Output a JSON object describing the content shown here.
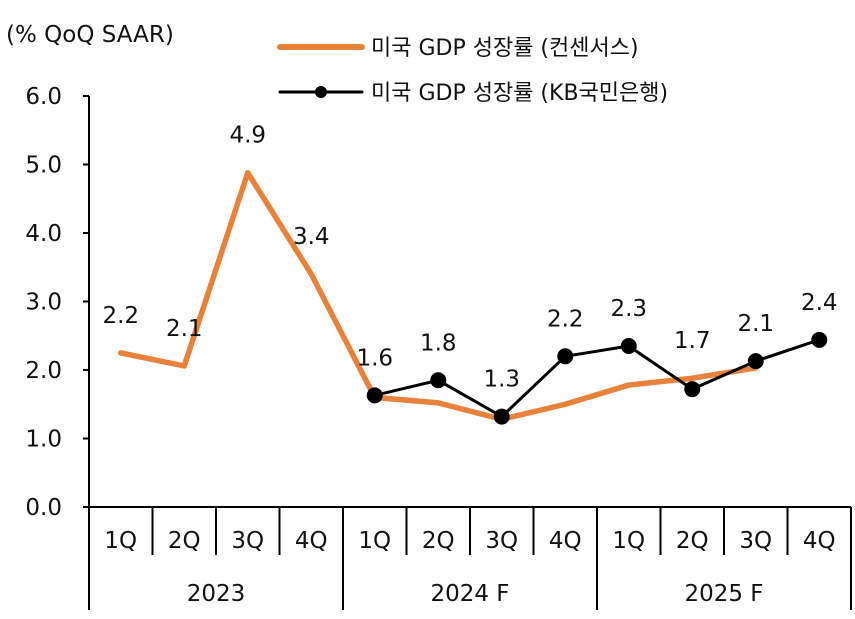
{
  "chart_data": {
    "type": "line",
    "unit_label": "(% QoQ SAAR)",
    "ylim": [
      0,
      6
    ],
    "yticks": [
      "0.0",
      "1.0",
      "2.0",
      "3.0",
      "4.0",
      "5.0",
      "6.0"
    ],
    "categories": [
      "1Q",
      "2Q",
      "3Q",
      "4Q",
      "1Q",
      "2Q",
      "3Q",
      "4Q",
      "1Q",
      "2Q",
      "3Q",
      "4Q"
    ],
    "groups": [
      {
        "label": "2023",
        "count": 4
      },
      {
        "label": "2024 F",
        "count": 4
      },
      {
        "label": "2025 F",
        "count": 4
      }
    ],
    "legend_position": "top-center",
    "series": [
      {
        "name": "미국 GDP 성장률 (컨센서스)",
        "color": "#E8823A",
        "marker": false,
        "values": [
          2.25,
          2.06,
          4.88,
          3.4,
          1.6,
          1.52,
          1.28,
          1.5,
          1.78,
          1.88,
          2.03,
          null
        ]
      },
      {
        "name": "미국 GDP 성장률 (KB국민은행)",
        "color": "#000000",
        "marker": true,
        "values": [
          null,
          null,
          null,
          null,
          1.63,
          1.85,
          1.32,
          2.2,
          2.35,
          1.72,
          2.13,
          2.44
        ]
      }
    ],
    "data_labels": [
      {
        "index": 0,
        "text": "2.2"
      },
      {
        "index": 1,
        "text": "2.1"
      },
      {
        "index": 2,
        "text": "4.9"
      },
      {
        "index": 3,
        "text": "3.4"
      },
      {
        "index": 4,
        "text": "1.6"
      },
      {
        "index": 5,
        "text": "1.8"
      },
      {
        "index": 6,
        "text": "1.3"
      },
      {
        "index": 7,
        "text": "2.2"
      },
      {
        "index": 8,
        "text": "2.3"
      },
      {
        "index": 9,
        "text": "1.7"
      },
      {
        "index": 10,
        "text": "2.1"
      },
      {
        "index": 11,
        "text": "2.4"
      }
    ]
  }
}
